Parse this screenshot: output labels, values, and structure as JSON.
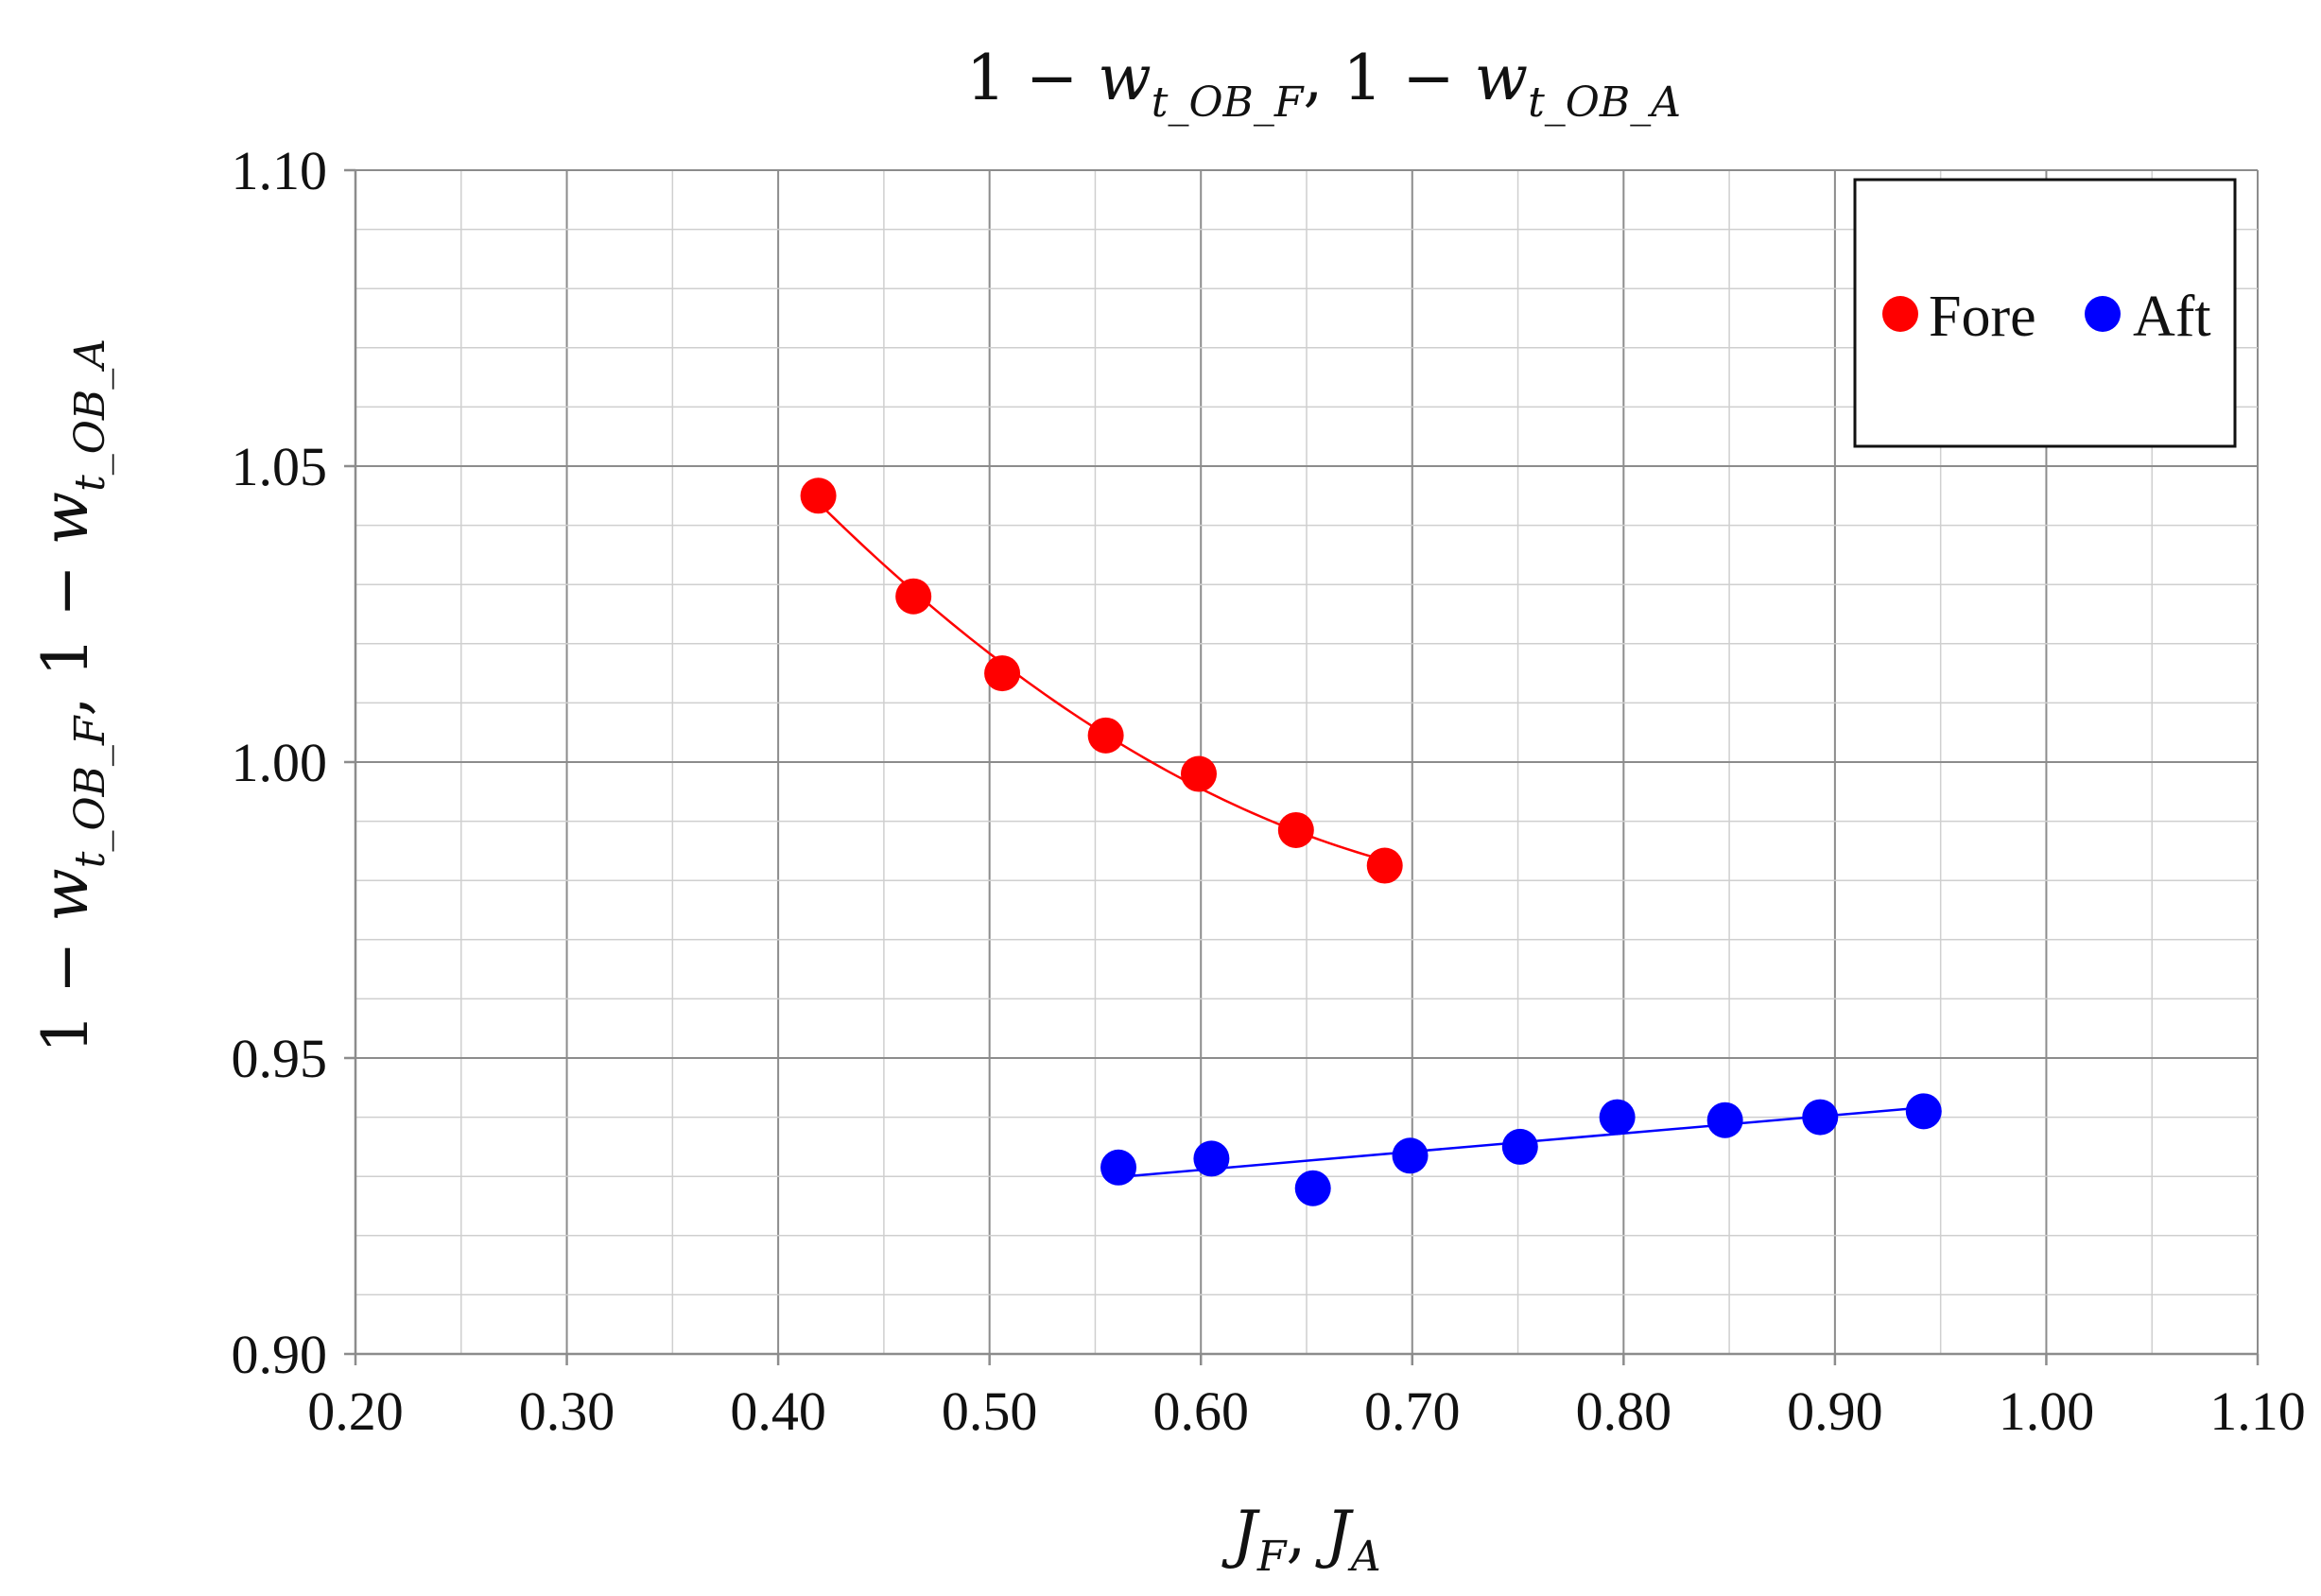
{
  "chart_data": {
    "type": "scatter",
    "title": "1 − w_t_OB_F, 1 − w_t_OB_A",
    "xlabel": "J_F, J_A",
    "ylabel": "1 − w_t_OB_F, 1 − w_t_OB_A",
    "xlim": [
      0.2,
      1.1
    ],
    "ylim": [
      0.9,
      1.1
    ],
    "x_ticks": [
      "0.20",
      "0.30",
      "0.40",
      "0.50",
      "0.60",
      "0.70",
      "0.80",
      "0.90",
      "1.00",
      "1.10"
    ],
    "y_ticks": [
      "0.90",
      "0.95",
      "1.00",
      "1.05",
      "1.10"
    ],
    "grid": true,
    "legend_position": "top-right",
    "series": [
      {
        "name": "Fore",
        "color": "#ff0000",
        "trendline": "smooth curve",
        "x": [
          0.419,
          0.464,
          0.506,
          0.555,
          0.599,
          0.645,
          0.687
        ],
        "y": [
          1.045,
          1.028,
          1.015,
          1.0045,
          0.998,
          0.9885,
          0.9825
        ]
      },
      {
        "name": "Aft",
        "color": "#0000ff",
        "trendline": "linear",
        "x": [
          0.561,
          0.605,
          0.653,
          0.699,
          0.751,
          0.797,
          0.848,
          0.893,
          0.942
        ],
        "y": [
          0.9315,
          0.933,
          0.928,
          0.9335,
          0.935,
          0.94,
          0.9395,
          0.94,
          0.941
        ]
      }
    ]
  }
}
